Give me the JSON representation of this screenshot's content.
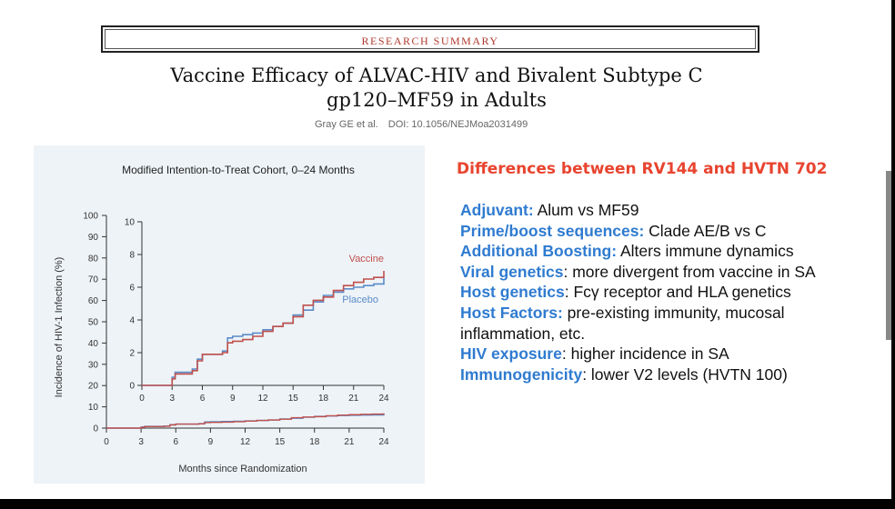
{
  "header": {
    "banner": "RESEARCH SUMMARY",
    "title_line1": "Vaccine Efficacy of ALVAC-HIV and Bivalent Subtype C",
    "title_line2": "gp120–MF59 in Adults",
    "authors": "Gray GE et al.",
    "doi": "DOI: 10.1056/NEJMoa2031499"
  },
  "colors": {
    "heading": "#e8442f",
    "key": "#2f7bd0",
    "vaccine": "#c0504d",
    "placebo": "#5b8cc8",
    "chart_bg": "#eef3f7",
    "banner_text": "#b03a2e"
  },
  "chart_data": {
    "type": "line",
    "title": "Modified Intention-to-Treat Cohort, 0–24 Months",
    "xlabel": "Months since Randomization",
    "ylabel": "Incidence of HIV-1 Infection (%)",
    "main": {
      "xlim": [
        0,
        24
      ],
      "ylim": [
        0,
        100
      ],
      "x_ticks": [
        0,
        3,
        6,
        9,
        12,
        15,
        18,
        21,
        24
      ],
      "y_ticks": [
        0,
        10,
        20,
        30,
        40,
        50,
        60,
        70,
        80,
        90,
        100
      ]
    },
    "inset": {
      "xlim": [
        0,
        24
      ],
      "ylim": [
        0,
        10
      ],
      "x_ticks": [
        0,
        3,
        6,
        9,
        12,
        15,
        18,
        21,
        24
      ],
      "y_ticks": [
        0,
        2,
        4,
        6,
        8,
        10
      ]
    },
    "series": [
      {
        "name": "Vaccine",
        "x": [
          0,
          2.5,
          3,
          3.3,
          5,
          5.5,
          6,
          8,
          8.5,
          9,
          10,
          11,
          12,
          13,
          14,
          15,
          16,
          17,
          18,
          19,
          20,
          21,
          22,
          23,
          24
        ],
        "y": [
          0,
          0,
          0.4,
          0.7,
          0.9,
          1.5,
          1.9,
          2.0,
          2.6,
          2.7,
          2.8,
          3.0,
          3.3,
          3.6,
          3.8,
          4.2,
          4.9,
          5.2,
          5.4,
          5.8,
          6.1,
          6.3,
          6.5,
          6.6,
          7.0
        ]
      },
      {
        "name": "Placebo",
        "x": [
          0,
          2.5,
          3,
          3.3,
          5,
          5.5,
          6,
          8,
          8.5,
          9,
          10,
          11,
          12,
          13,
          14,
          15,
          16,
          17,
          18,
          19,
          20,
          21,
          22,
          23,
          24
        ],
        "y": [
          0,
          0,
          0.5,
          0.8,
          1.0,
          1.6,
          1.9,
          2.1,
          2.9,
          3.0,
          3.1,
          3.2,
          3.4,
          3.6,
          3.8,
          4.3,
          4.6,
          5.1,
          5.5,
          5.7,
          5.9,
          6.0,
          6.1,
          6.2,
          6.6
        ]
      }
    ]
  },
  "differences": {
    "heading": "Differences between RV144 and HVTN 702",
    "items": [
      {
        "key": "Adjuvant:",
        "text": " Alum vs MF59"
      },
      {
        "key": "Prime/boost sequences:",
        "text": " Clade AE/B vs C"
      },
      {
        "key": "Additional Boosting:",
        "text": " Alters immune dynamics"
      },
      {
        "key": "Viral genetics",
        "text": ": more divergent from vaccine in SA"
      },
      {
        "key": "Host genetics",
        "text": ": Fcγ receptor and HLA genetics"
      },
      {
        "key": "Host Factors:",
        "text": " pre-existing immunity, mucosal inflammation, etc."
      },
      {
        "key": "HIV exposure",
        "text": ": higher incidence in SA"
      },
      {
        "key": "Immunogenicity",
        "text": ": lower V2 levels (HVTN 100)"
      }
    ]
  }
}
